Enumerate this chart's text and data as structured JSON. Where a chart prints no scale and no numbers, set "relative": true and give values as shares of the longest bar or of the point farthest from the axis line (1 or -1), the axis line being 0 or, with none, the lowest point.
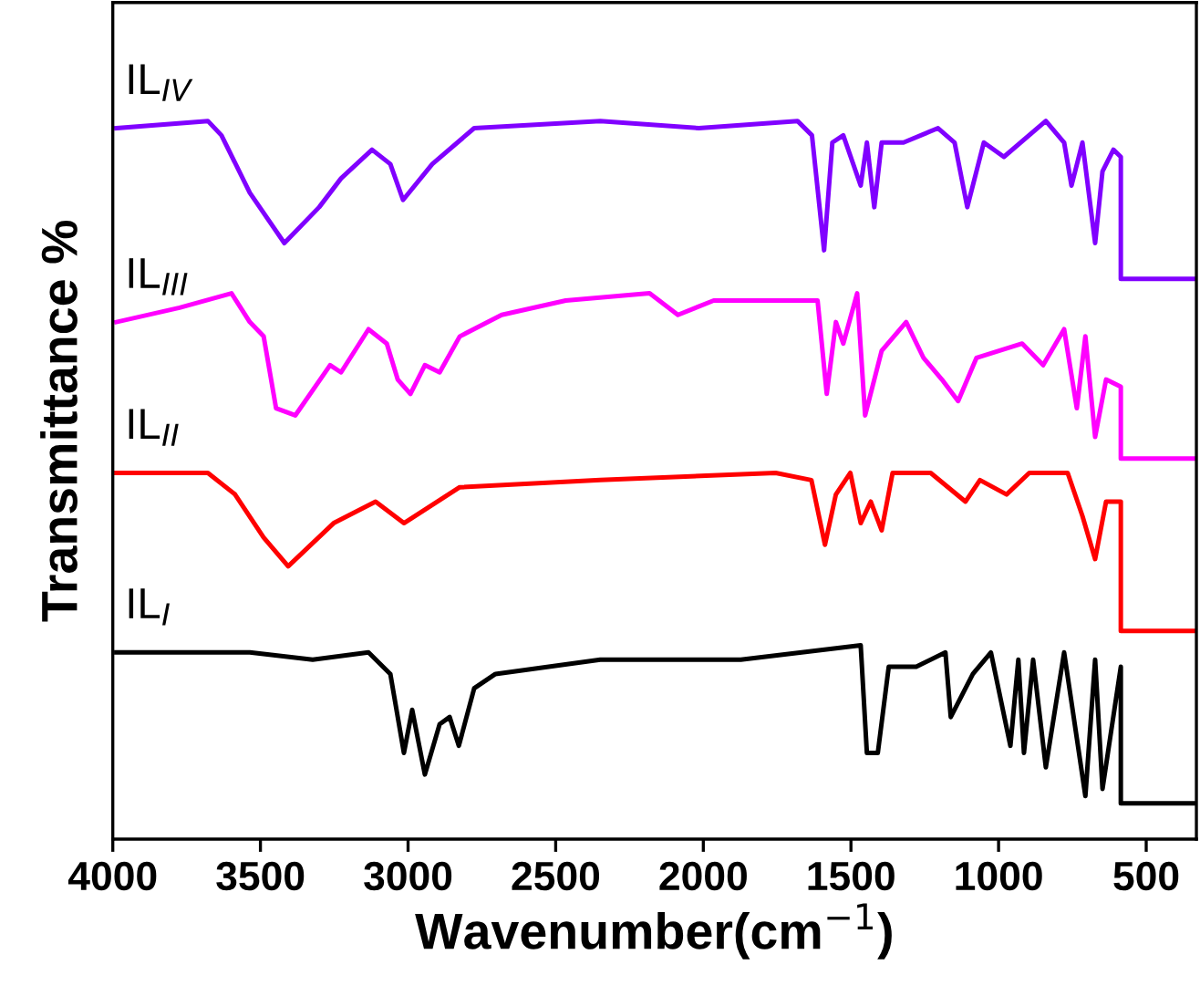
{
  "chart_data": {
    "type": "line",
    "relative": true,
    "xlabel": "Wavenumber(cm$^{−1}$)",
    "ylabel": "Transmittance %",
    "xlim": [
      4000,
      330
    ],
    "xticks": [
      4000,
      3500,
      3000,
      2500,
      2000,
      1500,
      1000,
      500
    ],
    "grid": false,
    "legend": false,
    "marker": "none",
    "line_style": "solid",
    "tick_labels": "x",
    "series": [
      {
        "name": "IL$_{IV}$",
        "color": "#8000ff",
        "x": [
          3988,
          3678,
          3632,
          3536,
          3419,
          3301,
          3227,
          3122,
          3060,
          3017,
          2918,
          2776,
          2349,
          2015,
          1681,
          1632,
          1591,
          1563,
          1526,
          1467,
          1446,
          1421,
          1396,
          1322,
          1205,
          1149,
          1106,
          1050,
          982,
          840,
          778,
          753,
          716,
          673,
          648,
          611,
          586,
          586,
          330
        ],
        "values": [
          0.99,
          1.0,
          0.98,
          0.9,
          0.83,
          0.88,
          0.92,
          0.96,
          0.94,
          0.89,
          0.94,
          0.99,
          1.0,
          0.99,
          1.0,
          0.98,
          0.82,
          0.97,
          0.98,
          0.91,
          0.97,
          0.88,
          0.97,
          0.97,
          0.99,
          0.97,
          0.88,
          0.97,
          0.95,
          1.0,
          0.97,
          0.91,
          0.97,
          0.83,
          0.93,
          0.96,
          0.95,
          0.78,
          0.78
        ]
      },
      {
        "name": "IL$_{III}$",
        "color": "#ff00ff",
        "x": [
          3988,
          3774,
          3598,
          3536,
          3489,
          3447,
          3382,
          3264,
          3227,
          3134,
          3072,
          3035,
          2992,
          2943,
          2893,
          2825,
          2683,
          2466,
          2182,
          2086,
          1965,
          1823,
          1613,
          1582,
          1551,
          1526,
          1479,
          1452,
          1396,
          1313,
          1254,
          1192,
          1137,
          1075,
          920,
          849,
          778,
          735,
          706,
          673,
          636,
          586,
          586,
          330
        ],
        "values": [
          0.72,
          0.74,
          0.76,
          0.72,
          0.7,
          0.6,
          0.59,
          0.66,
          0.65,
          0.71,
          0.69,
          0.64,
          0.62,
          0.66,
          0.65,
          0.7,
          0.73,
          0.75,
          0.76,
          0.73,
          0.75,
          0.75,
          0.75,
          0.62,
          0.72,
          0.69,
          0.76,
          0.59,
          0.68,
          0.72,
          0.67,
          0.64,
          0.61,
          0.67,
          0.69,
          0.66,
          0.71,
          0.6,
          0.7,
          0.56,
          0.64,
          0.63,
          0.53,
          0.53
        ]
      },
      {
        "name": "IL$_{II}$",
        "color": "#ff0000",
        "x": [
          3988,
          3678,
          3586,
          3489,
          3406,
          3252,
          3110,
          3014,
          2825,
          2349,
          1755,
          1634,
          1588,
          1551,
          1502,
          1467,
          1433,
          1396,
          1359,
          1230,
          1112,
          1063,
          973,
          896,
          766,
          716,
          673,
          636,
          586,
          586,
          330
        ],
        "values": [
          0.51,
          0.51,
          0.48,
          0.42,
          0.38,
          0.44,
          0.47,
          0.44,
          0.49,
          0.5,
          0.51,
          0.5,
          0.41,
          0.48,
          0.51,
          0.44,
          0.47,
          0.43,
          0.51,
          0.51,
          0.47,
          0.5,
          0.48,
          0.51,
          0.51,
          0.45,
          0.39,
          0.47,
          0.47,
          0.29,
          0.29
        ]
      },
      {
        "name": "IL$_{I}$",
        "color": "#000000",
        "x": [
          3988,
          3536,
          3323,
          3134,
          3060,
          3014,
          2986,
          2943,
          2893,
          2859,
          2828,
          2776,
          2704,
          2349,
          1873,
          1467,
          1446,
          1409,
          1372,
          1279,
          1180,
          1162,
          1087,
          1026,
          960,
          933,
          914,
          883,
          840,
          778,
          706,
          673,
          648,
          586,
          586,
          330
        ],
        "values": [
          0.26,
          0.26,
          0.25,
          0.26,
          0.23,
          0.12,
          0.18,
          0.09,
          0.16,
          0.17,
          0.13,
          0.21,
          0.23,
          0.25,
          0.25,
          0.27,
          0.12,
          0.12,
          0.24,
          0.24,
          0.26,
          0.17,
          0.23,
          0.26,
          0.13,
          0.25,
          0.12,
          0.25,
          0.1,
          0.26,
          0.06,
          0.25,
          0.07,
          0.24,
          0.05,
          0.05
        ]
      }
    ]
  }
}
